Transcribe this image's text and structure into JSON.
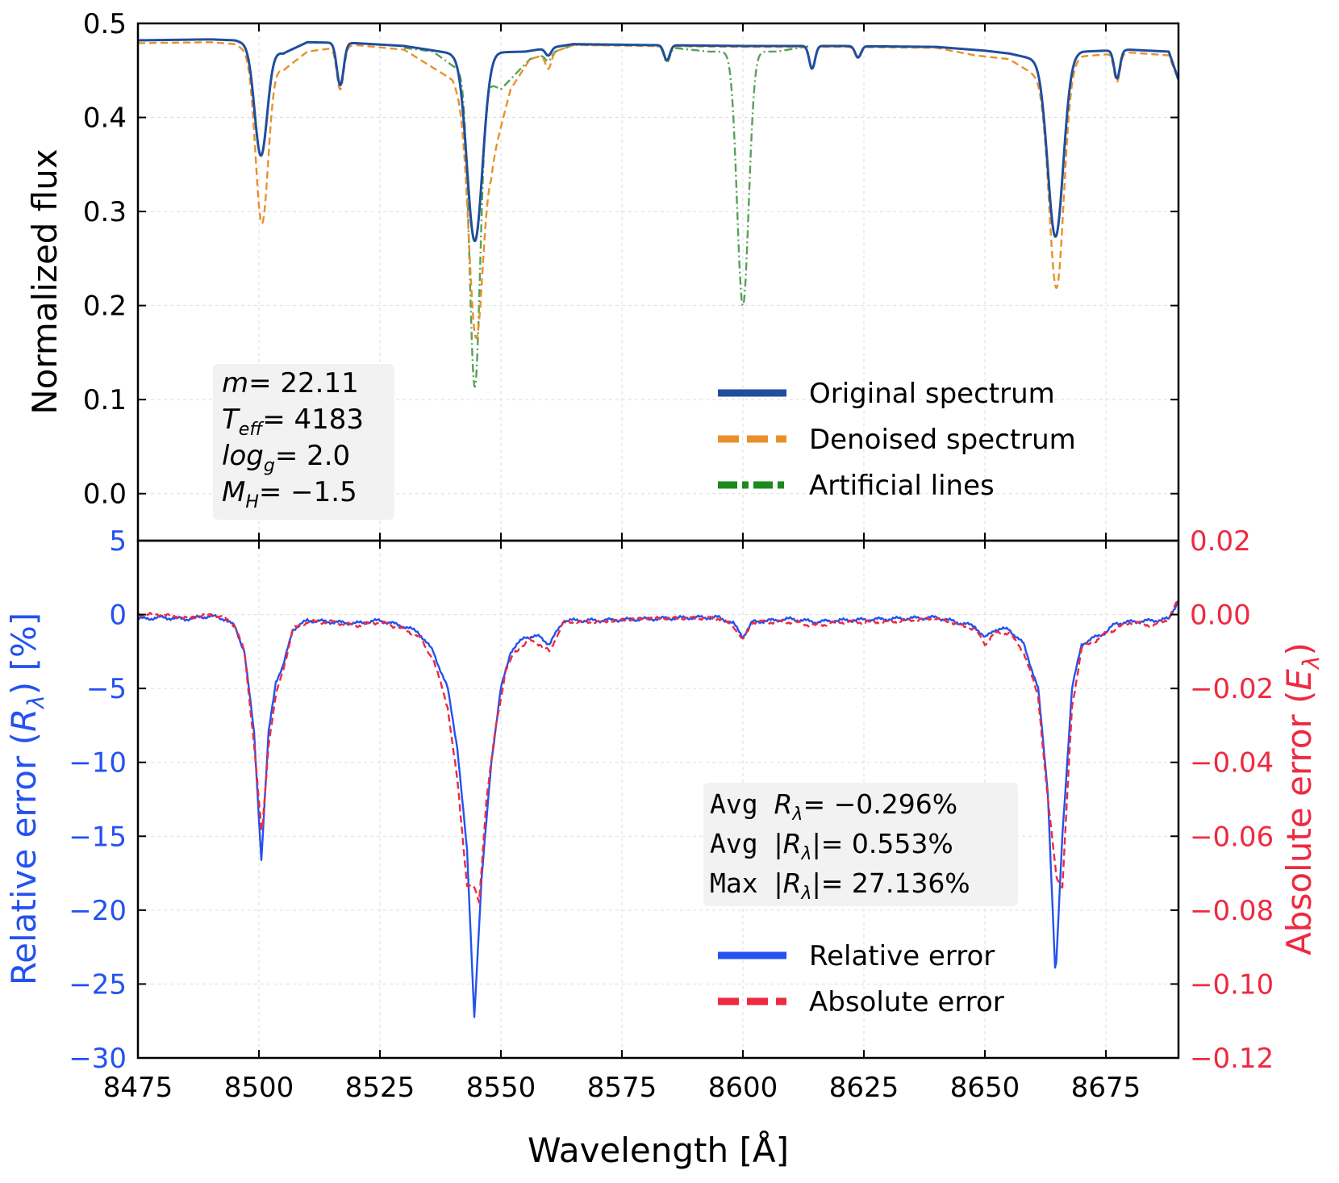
{
  "chart_data": [
    {
      "type": "line",
      "panel": "top",
      "title": "",
      "xlabel": "Wavelength [Å]",
      "ylabel": "Normalized flux",
      "xlim": [
        8475,
        8690
      ],
      "ylim": [
        -0.05,
        0.5
      ],
      "grid": true,
      "x_ticks": [
        8475,
        8500,
        8525,
        8550,
        8575,
        8600,
        8625,
        8650,
        8675
      ],
      "y_ticks": [
        0.0,
        0.1,
        0.2,
        0.3,
        0.4,
        0.5
      ],
      "y_tick_labels": [
        "0.0",
        "0.1",
        "0.2",
        "0.3",
        "0.4",
        "0.5"
      ],
      "legend_position": "bottom-right",
      "annotation": {
        "position": "bottom-left",
        "lines": [
          {
            "sym": "m",
            "sub": "",
            "val": "= 22.11"
          },
          {
            "sym": "T",
            "sub": "eff",
            "val": "= 4183"
          },
          {
            "sym": "log",
            "sub": "g",
            "val": "= 2.0"
          },
          {
            "sym": "M",
            "sub": "H",
            "val": "= −1.5"
          }
        ]
      },
      "series": [
        {
          "name": "Original spectrum",
          "color": "#1f4e9e",
          "style": "solid",
          "continuum": [
            [
              8475,
              0.482
            ],
            [
              8490,
              0.483
            ],
            [
              8495,
              0.482
            ],
            [
              8505,
              0.468
            ],
            [
              8510,
              0.48
            ],
            [
              8520,
              0.479
            ],
            [
              8530,
              0.476
            ],
            [
              8540,
              0.468
            ],
            [
              8555,
              0.47
            ],
            [
              8565,
              0.478
            ],
            [
              8580,
              0.477
            ],
            [
              8600,
              0.476
            ],
            [
              8620,
              0.476
            ],
            [
              8640,
              0.475
            ],
            [
              8650,
              0.471
            ],
            [
              8655,
              0.468
            ],
            [
              8662,
              0.46
            ],
            [
              8670,
              0.47
            ],
            [
              8680,
              0.472
            ],
            [
              8688,
              0.47
            ],
            [
              8690,
              0.44
            ]
          ],
          "lines": [
            {
              "center": 8500.4,
              "depth": 0.115,
              "width": 1.3
            },
            {
              "center": 8516.8,
              "depth": 0.045,
              "width": 0.7
            },
            {
              "center": 8544.6,
              "depth": 0.2,
              "width": 1.6
            },
            {
              "center": 8559.8,
              "depth": 0.008,
              "width": 0.6
            },
            {
              "center": 8584.3,
              "depth": 0.016,
              "width": 0.6
            },
            {
              "center": 8614.3,
              "depth": 0.024,
              "width": 0.6
            },
            {
              "center": 8623.8,
              "depth": 0.012,
              "width": 0.6
            },
            {
              "center": 8664.6,
              "depth": 0.19,
              "width": 1.6
            },
            {
              "center": 8677.3,
              "depth": 0.03,
              "width": 0.6
            }
          ]
        },
        {
          "name": "Denoised spectrum",
          "color": "#e8912a",
          "style": "dashed",
          "continuum": [
            [
              8475,
              0.479
            ],
            [
              8490,
              0.48
            ],
            [
              8495,
              0.478
            ],
            [
              8505,
              0.45
            ],
            [
              8510,
              0.47
            ],
            [
              8520,
              0.477
            ],
            [
              8530,
              0.472
            ],
            [
              8540,
              0.44
            ],
            [
              8548,
              0.35
            ],
            [
              8552,
              0.43
            ],
            [
              8556,
              0.462
            ],
            [
              8560,
              0.468
            ],
            [
              8565,
              0.477
            ],
            [
              8580,
              0.476
            ],
            [
              8600,
              0.475
            ],
            [
              8620,
              0.475
            ],
            [
              8640,
              0.474
            ],
            [
              8648,
              0.466
            ],
            [
              8655,
              0.462
            ],
            [
              8662,
              0.44
            ],
            [
              8670,
              0.465
            ],
            [
              8680,
              0.469
            ],
            [
              8688,
              0.466
            ],
            [
              8690,
              0.44
            ]
          ],
          "lines": [
            {
              "center": 8500.6,
              "depth": 0.175,
              "width": 1.3
            },
            {
              "center": 8516.8,
              "depth": 0.045,
              "width": 0.7
            },
            {
              "center": 8544.8,
              "depth": 0.22,
              "width": 1.4
            },
            {
              "center": 8559.8,
              "depth": 0.016,
              "width": 0.6
            },
            {
              "center": 8584.3,
              "depth": 0.016,
              "width": 0.6
            },
            {
              "center": 8614.3,
              "depth": 0.024,
              "width": 0.6
            },
            {
              "center": 8623.8,
              "depth": 0.012,
              "width": 0.6
            },
            {
              "center": 8664.8,
              "depth": 0.23,
              "width": 1.5
            },
            {
              "center": 8677.3,
              "depth": 0.03,
              "width": 0.6
            }
          ]
        },
        {
          "name": "Artificial lines",
          "color": "#2e8b2e",
          "style": "dashdot",
          "continuum": [
            [
              8530,
              0.474
            ],
            [
              8536,
              0.47
            ],
            [
              8540,
              0.455
            ],
            [
              8550,
              0.43
            ],
            [
              8556,
              0.462
            ],
            [
              8560,
              0.468
            ],
            [
              8565,
              0.477
            ],
            [
              8580,
              0.477
            ],
            [
              8593,
              0.47
            ],
            [
              8607,
              0.47
            ],
            [
              8614,
              0.476
            ]
          ],
          "x_range": [
            8530,
            8614
          ],
          "lines": [
            {
              "center": 8544.6,
              "depth": 0.33,
              "width": 1.1
            },
            {
              "center": 8559.8,
              "depth": 0.008,
              "width": 0.6
            },
            {
              "center": 8584.3,
              "depth": 0.016,
              "width": 0.6
            },
            {
              "center": 8600.0,
              "depth": 0.27,
              "width": 1.2
            }
          ]
        }
      ]
    },
    {
      "type": "line",
      "panel": "bottom",
      "title": "",
      "xlabel": "Wavelength [Å]",
      "ylabel_left": "Relative error (Rλ) [%]",
      "ylabel_right": "Absolute error (Eλ)",
      "xlim": [
        8475,
        8690
      ],
      "ylim_left": [
        -30,
        5
      ],
      "ylim_right": [
        -0.12,
        0.02
      ],
      "grid": true,
      "x_ticks": [
        8475,
        8500,
        8525,
        8550,
        8575,
        8600,
        8625,
        8650,
        8675
      ],
      "x_tick_labels": [
        "8475",
        "8500",
        "8525",
        "8550",
        "8575",
        "8600",
        "8625",
        "8650",
        "8675"
      ],
      "y_left_ticks": [
        5,
        0,
        -5,
        -10,
        -15,
        -20,
        -25,
        -30
      ],
      "y_left_tick_labels": [
        "5",
        "0",
        "−5",
        "−10",
        "−15",
        "−20",
        "−25",
        "−30"
      ],
      "y_right_ticks": [
        0.02,
        0.0,
        -0.02,
        -0.04,
        -0.06,
        -0.08,
        -0.1,
        -0.12
      ],
      "y_right_tick_labels": [
        "0.02",
        "0.00",
        "−0.02",
        "−0.04",
        "−0.06",
        "−0.08",
        "−0.10",
        "−0.12"
      ],
      "legend_position": "bottom-right",
      "annotation": {
        "position": "center-right",
        "lines": [
          {
            "prefix": "Avg ",
            "expr": "= −0.296%",
            "abs": false
          },
          {
            "prefix": "Avg ",
            "expr": "= 0.553%",
            "abs": true
          },
          {
            "prefix": "Max ",
            "expr": "= 27.136%",
            "abs": true
          }
        ]
      },
      "series": [
        {
          "name": "Relative error",
          "axis": "left",
          "color": "#2352f0",
          "style": "solid",
          "points": [
            [
              8475,
              -0.3
            ],
            [
              8480,
              -0.2
            ],
            [
              8485,
              -0.3
            ],
            [
              8490,
              -0.1
            ],
            [
              8493,
              -0.3
            ],
            [
              8495,
              -0.8
            ],
            [
              8497,
              -2.5
            ],
            [
              8499,
              -8
            ],
            [
              8500.5,
              -16.6
            ],
            [
              8502,
              -8
            ],
            [
              8503.5,
              -4.5
            ],
            [
              8505,
              -3.5
            ],
            [
              8507,
              -1
            ],
            [
              8510,
              -0.4
            ],
            [
              8515,
              -0.5
            ],
            [
              8520,
              -0.6
            ],
            [
              8525,
              -0.4
            ],
            [
              8530,
              -0.8
            ],
            [
              8533,
              -1.2
            ],
            [
              8536,
              -2.5
            ],
            [
              8539,
              -5
            ],
            [
              8541,
              -9
            ],
            [
              8543,
              -16
            ],
            [
              8544.5,
              -27.2
            ],
            [
              8546,
              -18
            ],
            [
              8548,
              -10
            ],
            [
              8550,
              -5
            ],
            [
              8552,
              -2.5
            ],
            [
              8555,
              -1.5
            ],
            [
              8558,
              -1.5
            ],
            [
              8560,
              -2
            ],
            [
              8563,
              -0.4
            ],
            [
              8570,
              -0.4
            ],
            [
              8580,
              -0.3
            ],
            [
              8590,
              -0.2
            ],
            [
              8595,
              -0.2
            ],
            [
              8598,
              -0.6
            ],
            [
              8600,
              -1.5
            ],
            [
              8602,
              -0.5
            ],
            [
              8610,
              -0.3
            ],
            [
              8615,
              -0.5
            ],
            [
              8620,
              -0.4
            ],
            [
              8630,
              -0.3
            ],
            [
              8640,
              -0.2
            ],
            [
              8648,
              -0.8
            ],
            [
              8650,
              -1.6
            ],
            [
              8652,
              -1.0
            ],
            [
              8655,
              -1.0
            ],
            [
              8658,
              -2
            ],
            [
              8661,
              -5
            ],
            [
              8663,
              -12
            ],
            [
              8664.6,
              -24.7
            ],
            [
              8666,
              -15
            ],
            [
              8668,
              -5
            ],
            [
              8670,
              -2
            ],
            [
              8673,
              -1.5
            ],
            [
              8675,
              -1.2
            ],
            [
              8677,
              -0.6
            ],
            [
              8680,
              -0.5
            ],
            [
              8685,
              -0.4
            ],
            [
              8688,
              -0.3
            ],
            [
              8690,
              1.0
            ]
          ]
        },
        {
          "name": "Absolute error",
          "axis": "right",
          "color": "#ee2a40",
          "style": "dashed",
          "points": [
            [
              8475,
              0.0
            ],
            [
              8480,
              0.0
            ],
            [
              8485,
              -0.001
            ],
            [
              8490,
              0.0
            ],
            [
              8493,
              -0.001
            ],
            [
              8495,
              -0.003
            ],
            [
              8497,
              -0.01
            ],
            [
              8499,
              -0.035
            ],
            [
              8500.6,
              -0.06
            ],
            [
              8502,
              -0.035
            ],
            [
              8503.5,
              -0.022
            ],
            [
              8505,
              -0.015
            ],
            [
              8507,
              -0.004
            ],
            [
              8510,
              -0.002
            ],
            [
              8515,
              -0.002
            ],
            [
              8520,
              -0.003
            ],
            [
              8525,
              -0.002
            ],
            [
              8530,
              -0.004
            ],
            [
              8533,
              -0.006
            ],
            [
              8536,
              -0.012
            ],
            [
              8539,
              -0.025
            ],
            [
              8541,
              -0.045
            ],
            [
              8543,
              -0.073
            ],
            [
              8544.5,
              -0.074
            ],
            [
              8545.5,
              -0.078
            ],
            [
              8547,
              -0.05
            ],
            [
              8549,
              -0.03
            ],
            [
              8551,
              -0.015
            ],
            [
              8553,
              -0.01
            ],
            [
              8556,
              -0.007
            ],
            [
              8558,
              -0.008
            ],
            [
              8560,
              -0.01
            ],
            [
              8563,
              -0.002
            ],
            [
              8570,
              -0.002
            ],
            [
              8580,
              -0.001
            ],
            [
              8590,
              -0.001
            ],
            [
              8595,
              -0.001
            ],
            [
              8598,
              -0.003
            ],
            [
              8600,
              -0.007
            ],
            [
              8602,
              -0.002
            ],
            [
              8610,
              -0.002
            ],
            [
              8615,
              -0.003
            ],
            [
              8620,
              -0.002
            ],
            [
              8630,
              -0.002
            ],
            [
              8640,
              -0.001
            ],
            [
              8648,
              -0.004
            ],
            [
              8650,
              -0.008
            ],
            [
              8652,
              -0.005
            ],
            [
              8655,
              -0.005
            ],
            [
              8658,
              -0.01
            ],
            [
              8661,
              -0.022
            ],
            [
              8663,
              -0.05
            ],
            [
              8664.8,
              -0.071
            ],
            [
              8666,
              -0.074
            ],
            [
              8668,
              -0.025
            ],
            [
              8670,
              -0.009
            ],
            [
              8673,
              -0.007
            ],
            [
              8675,
              -0.005
            ],
            [
              8677,
              -0.004
            ],
            [
              8680,
              -0.002
            ],
            [
              8685,
              -0.003
            ],
            [
              8688,
              -0.001
            ],
            [
              8690,
              0.004
            ]
          ]
        }
      ]
    }
  ]
}
